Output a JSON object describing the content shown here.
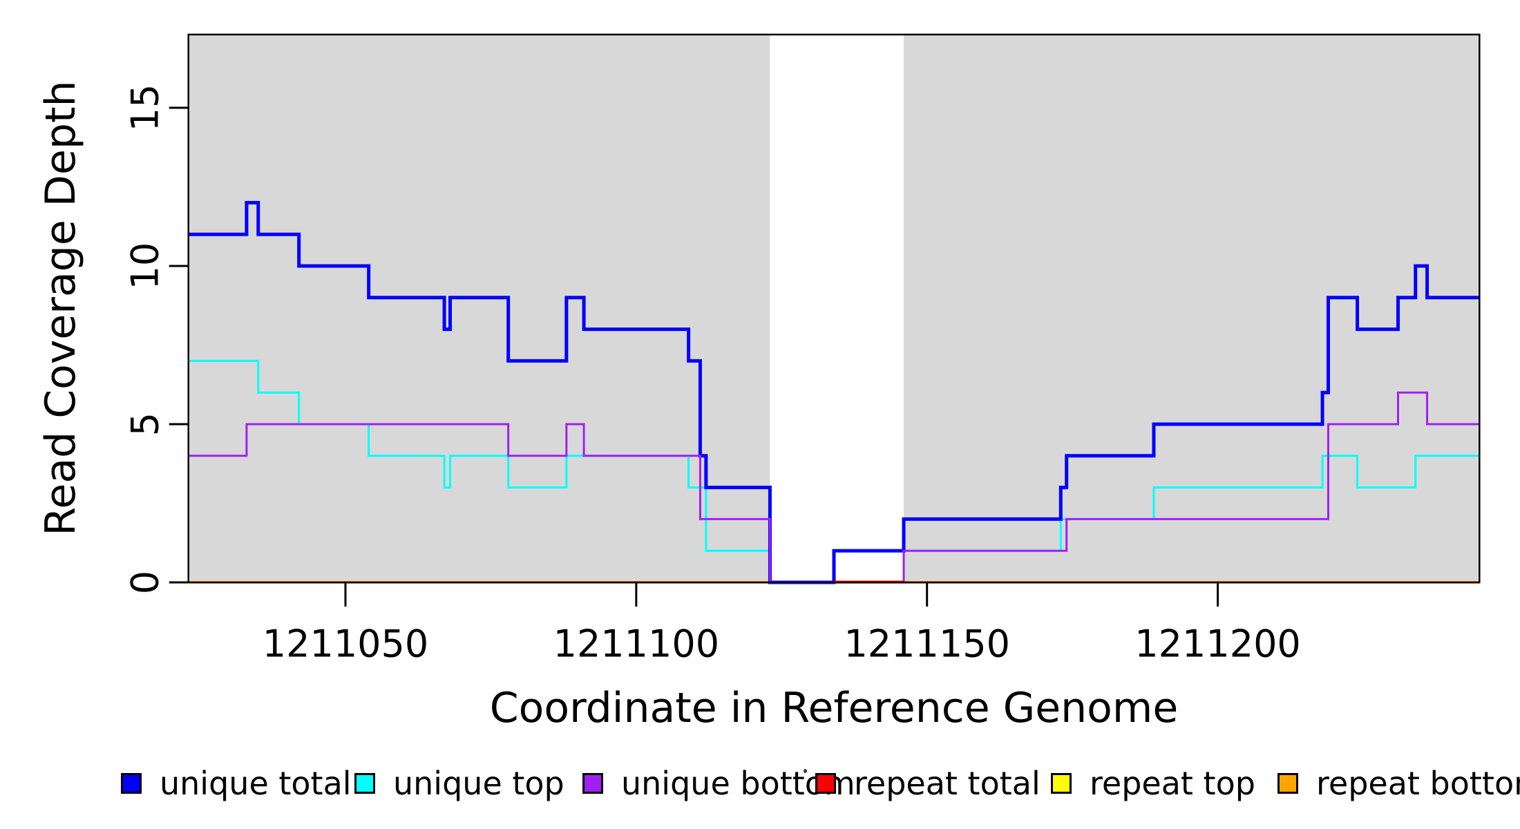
{
  "axes": {
    "x_label": "Coordinate in Reference Genome",
    "y_label": "Read Coverage Depth",
    "x_tick_labels": [
      "1211050",
      "1211100",
      "1211150",
      "1211200"
    ],
    "y_tick_labels": [
      "0",
      "5",
      "10",
      "15"
    ]
  },
  "legend": {
    "items": [
      {
        "label": "unique total",
        "color": "#0000FF"
      },
      {
        "label": "unique top",
        "color": "#00FFFF"
      },
      {
        "label": "unique bottom",
        "color": "#A020F0"
      },
      {
        "label": "repeat total",
        "color": "#FF0000"
      },
      {
        "label": "repeat top",
        "color": "#FFFF00"
      },
      {
        "label": "repeat bottom",
        "color": "#FFA500"
      }
    ]
  },
  "colors": {
    "shade": "#D8D8D8",
    "axis": "#000000",
    "background": "#FFFFFF"
  },
  "chart_data": {
    "type": "line",
    "step": true,
    "title": "",
    "xlabel": "Coordinate in Reference Genome",
    "ylabel": "Read Coverage Depth",
    "xlim": [
      1211023,
      1211245
    ],
    "ylim": [
      0,
      17.3
    ],
    "x_ticks": [
      1211050,
      1211100,
      1211150,
      1211200
    ],
    "y_ticks": [
      0,
      5,
      10,
      15
    ],
    "grid": false,
    "legend_position": "bottom",
    "shaded_x_regions": [
      {
        "from": 1211023,
        "to": 1211123
      },
      {
        "from": 1211146,
        "to": 1211245
      }
    ],
    "unshaded_gap": {
      "from": 1211123,
      "to": 1211146
    },
    "series": [
      {
        "name": "repeat top",
        "color": "#FFFF00",
        "width": 3,
        "points": [
          [
            1211023,
            0
          ]
        ]
      },
      {
        "name": "repeat total",
        "color": "#FF0000",
        "width": 3,
        "points": [
          [
            1211023,
            0
          ]
        ]
      },
      {
        "name": "repeat bottom",
        "color": "#FFA500",
        "width": 4,
        "points": [
          [
            1211023,
            0
          ]
        ]
      },
      {
        "name": "unique top",
        "color": "#00FFFF",
        "width": 3,
        "points": [
          [
            1211023,
            7
          ],
          [
            1211035,
            6
          ],
          [
            1211042,
            5
          ],
          [
            1211054,
            4
          ],
          [
            1211067,
            3
          ],
          [
            1211068,
            4
          ],
          [
            1211078,
            3
          ],
          [
            1211088,
            4
          ],
          [
            1211109,
            3
          ],
          [
            1211112,
            1
          ],
          [
            1211123,
            0
          ],
          [
            1211134,
            1
          ],
          [
            1211173,
            2
          ],
          [
            1211189,
            3
          ],
          [
            1211218,
            4
          ],
          [
            1211224,
            3
          ],
          [
            1211234,
            4
          ]
        ]
      },
      {
        "name": "unique total",
        "color": "#0000FF",
        "width": 5,
        "points": [
          [
            1211023,
            11
          ],
          [
            1211033,
            12
          ],
          [
            1211035,
            11
          ],
          [
            1211042,
            10
          ],
          [
            1211054,
            9
          ],
          [
            1211067,
            8
          ],
          [
            1211068,
            9
          ],
          [
            1211078,
            7
          ],
          [
            1211088,
            9
          ],
          [
            1211091,
            8
          ],
          [
            1211109,
            7
          ],
          [
            1211111,
            4
          ],
          [
            1211112,
            3
          ],
          [
            1211123,
            0
          ],
          [
            1211134,
            1
          ],
          [
            1211146,
            2
          ],
          [
            1211173,
            3
          ],
          [
            1211174,
            4
          ],
          [
            1211189,
            5
          ],
          [
            1211218,
            6
          ],
          [
            1211219,
            9
          ],
          [
            1211224,
            8
          ],
          [
            1211231,
            9
          ],
          [
            1211234,
            10
          ],
          [
            1211236,
            9
          ]
        ]
      },
      {
        "name": "unique bottom",
        "color": "#A020F0",
        "width": 3,
        "points": [
          [
            1211023,
            4
          ],
          [
            1211033,
            5
          ],
          [
            1211078,
            4
          ],
          [
            1211088,
            5
          ],
          [
            1211091,
            4
          ],
          [
            1211111,
            2
          ],
          [
            1211123,
            0
          ],
          [
            1211146,
            1
          ],
          [
            1211174,
            2
          ],
          [
            1211219,
            5
          ],
          [
            1211231,
            6
          ],
          [
            1211236,
            5
          ]
        ]
      }
    ],
    "baseline_overlays": [
      {
        "series": "repeat total",
        "color": "#FF0000",
        "from": 1211134,
        "to": 1211146,
        "value": 0,
        "width": 3
      }
    ]
  }
}
